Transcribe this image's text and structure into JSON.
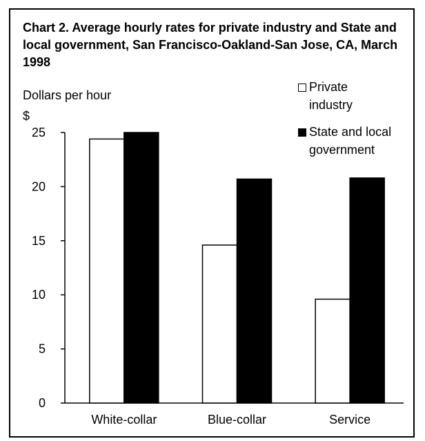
{
  "chart_data": {
    "type": "bar",
    "title": "Chart 2. Average hourly rates for private industry and State and local government, San Francisco-Oakland-San Jose, CA, March 1998",
    "ylabel": "Dollars per hour",
    "yunit": "$",
    "xlabel": "",
    "categories": [
      "White-collar",
      "Blue-collar",
      "Service"
    ],
    "series": [
      {
        "name": "Private industry",
        "values": [
          24.4,
          14.6,
          9.6
        ],
        "color": "#ffffff"
      },
      {
        "name": "State and local government",
        "values": [
          25.0,
          20.7,
          20.8
        ],
        "color": "#000000"
      }
    ],
    "ylim": [
      0,
      25
    ],
    "yticks": [
      0,
      5,
      10,
      15,
      20,
      25
    ],
    "grid": false,
    "legend": "top-right"
  },
  "legend": {
    "private_line1": "Private",
    "private_line2": "industry",
    "gov_line1": "State and local",
    "gov_line2": "government"
  }
}
